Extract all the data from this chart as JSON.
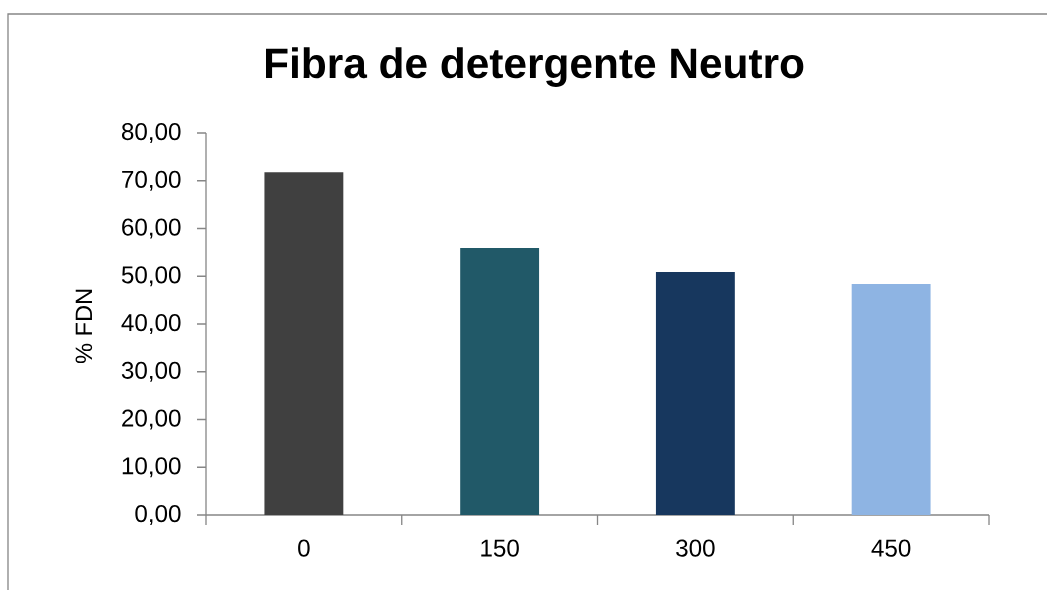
{
  "chart_data": {
    "type": "bar",
    "title": "Fibra de detergente Neutro",
    "ylabel": "% FDN",
    "categories": [
      "0",
      "150",
      "300",
      "450"
    ],
    "values": [
      71.8,
      55.9,
      50.9,
      48.4
    ],
    "colors": [
      "#404040",
      "#215968",
      "#17375e",
      "#8eb4e3"
    ],
    "ylim": [
      0,
      80
    ],
    "yticks": [
      {
        "value": 0,
        "label": "0,00"
      },
      {
        "value": 10,
        "label": "10,00"
      },
      {
        "value": 20,
        "label": "20,00"
      },
      {
        "value": 30,
        "label": "30,00"
      },
      {
        "value": 40,
        "label": "40,00"
      },
      {
        "value": 50,
        "label": "50,00"
      },
      {
        "value": 60,
        "label": "60,00"
      },
      {
        "value": 70,
        "label": "70,00"
      },
      {
        "value": 80,
        "label": "80,00"
      }
    ]
  }
}
